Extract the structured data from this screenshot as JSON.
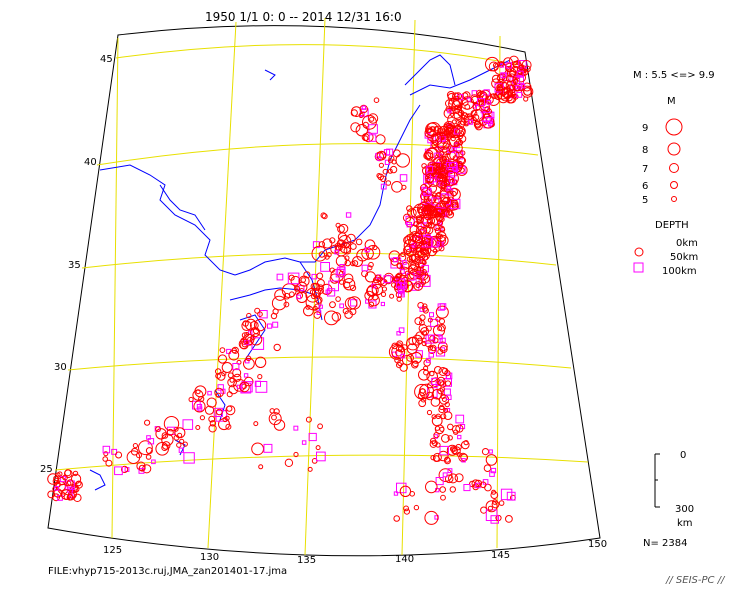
{
  "header": {
    "title": "1950 1/1  0: 0 -- 2014 12/31 16:0"
  },
  "map": {
    "lat_labels": [
      "45",
      "40",
      "35",
      "30",
      "25"
    ],
    "lon_labels": [
      "125",
      "130",
      "135",
      "140",
      "145",
      "150"
    ]
  },
  "legend": {
    "mag_range": "M : 5.5 <=> 9.9",
    "mag_title": "M",
    "mag_items": [
      "9",
      "8",
      "7",
      "6",
      "5"
    ],
    "depth_title": "DEPTH",
    "depth_items": [
      "0km",
      "50km",
      "100km"
    ],
    "depth_scale_top": "0",
    "depth_scale_bottom": "300",
    "depth_scale_unit": "km",
    "count": "N= 2384"
  },
  "footer": {
    "file": "FILE:vhyp715-2013c.ruj,JMA_zan201401-17.jma",
    "brand": "// SEIS-PC //"
  },
  "colors": {
    "shallow": "#ff0000",
    "mid": "#ff00ff",
    "deep": "#e000e0",
    "graticule": "#e8e000",
    "coast": "#0000ff",
    "frame": "#000000"
  }
}
